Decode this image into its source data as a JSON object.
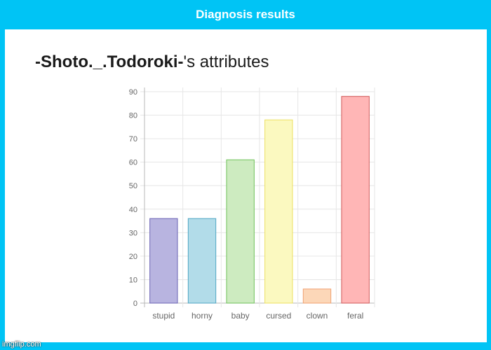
{
  "header": {
    "title": "Diagnosis results"
  },
  "main": {
    "username": "-Shoto._.Todoroki-",
    "title_suffix": "'s attributes"
  },
  "watermark": "imgflip.com",
  "colors": {
    "header_bg": "#00c4f5",
    "panel_bg": "#ffffff"
  },
  "chart_data": {
    "type": "bar",
    "categories": [
      "stupid",
      "horny",
      "baby",
      "cursed",
      "clown",
      "feral"
    ],
    "values": [
      36,
      36,
      61,
      78,
      6,
      88
    ],
    "ylim": [
      0,
      90
    ],
    "yticks": [
      0,
      10,
      20,
      30,
      40,
      50,
      60,
      70,
      80,
      90
    ],
    "grid": true,
    "legend": "none",
    "bar_colors": [
      {
        "fill": "#b8b4e0",
        "stroke": "#6b63b5"
      },
      {
        "fill": "#b2dce9",
        "stroke": "#4fa6c4"
      },
      {
        "fill": "#cdebc0",
        "stroke": "#6fc25a"
      },
      {
        "fill": "#fbf9c0",
        "stroke": "#ece060"
      },
      {
        "fill": "#fcd7b8",
        "stroke": "#f0a070"
      },
      {
        "fill": "#ffb6b6",
        "stroke": "#d05a5a"
      }
    ]
  }
}
